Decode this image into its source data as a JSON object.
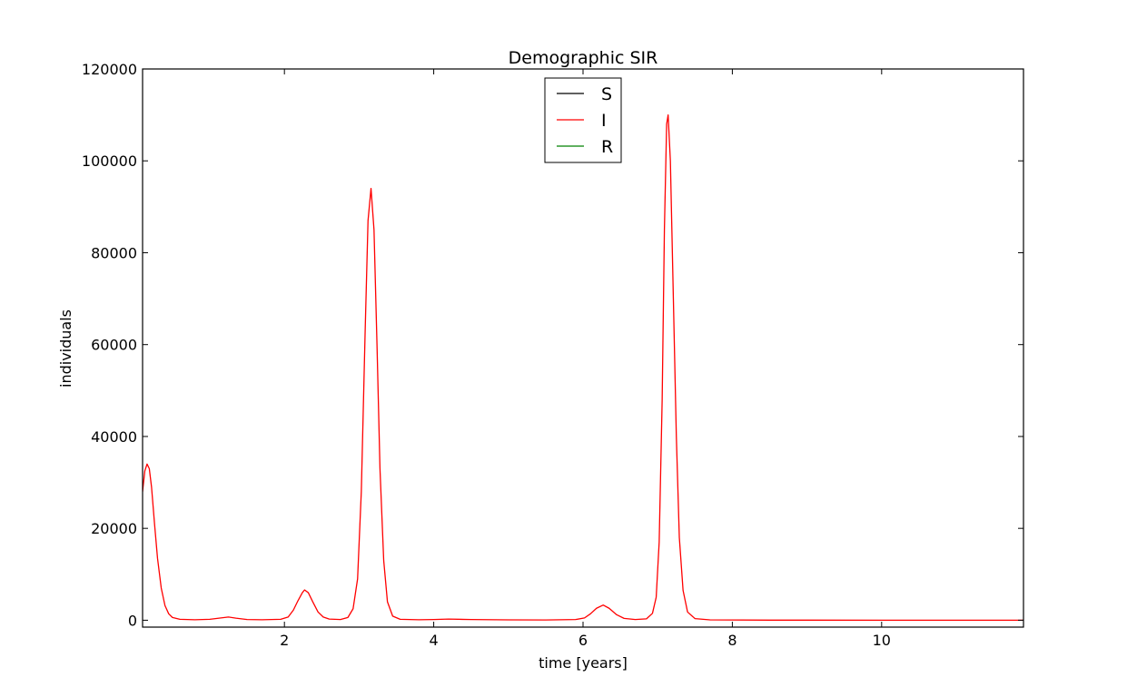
{
  "chart_data": {
    "type": "line",
    "title": "Demographic SIR",
    "xlabel": "time [years]",
    "ylabel": "individuals",
    "xlim": [
      0.1,
      11.9
    ],
    "ylim": [
      -1500,
      120000
    ],
    "xticks": [
      2,
      4,
      6,
      8,
      10
    ],
    "yticks": [
      0,
      20000,
      40000,
      60000,
      80000,
      100000,
      120000
    ],
    "legend_position": "upper center",
    "grid": false,
    "series": [
      {
        "name": "S",
        "color": "#000000",
        "points": []
      },
      {
        "name": "I",
        "color": "#ff0000",
        "points": [
          [
            0.1,
            28000
          ],
          [
            0.13,
            32500
          ],
          [
            0.16,
            34000
          ],
          [
            0.19,
            33000
          ],
          [
            0.22,
            29000
          ],
          [
            0.26,
            21000
          ],
          [
            0.3,
            13500
          ],
          [
            0.35,
            7000
          ],
          [
            0.4,
            3200
          ],
          [
            0.45,
            1400
          ],
          [
            0.5,
            600
          ],
          [
            0.6,
            200
          ],
          [
            0.8,
            100
          ],
          [
            1.0,
            200
          ],
          [
            1.15,
            500
          ],
          [
            1.25,
            700
          ],
          [
            1.35,
            450
          ],
          [
            1.5,
            150
          ],
          [
            1.7,
            100
          ],
          [
            1.95,
            200
          ],
          [
            2.05,
            700
          ],
          [
            2.12,
            2200
          ],
          [
            2.18,
            4200
          ],
          [
            2.24,
            6000
          ],
          [
            2.27,
            6600
          ],
          [
            2.32,
            6000
          ],
          [
            2.38,
            4000
          ],
          [
            2.45,
            1800
          ],
          [
            2.52,
            700
          ],
          [
            2.6,
            250
          ],
          [
            2.75,
            150
          ],
          [
            2.85,
            600
          ],
          [
            2.92,
            2500
          ],
          [
            2.98,
            9000
          ],
          [
            3.03,
            28000
          ],
          [
            3.08,
            62000
          ],
          [
            3.12,
            87000
          ],
          [
            3.16,
            94000
          ],
          [
            3.2,
            85000
          ],
          [
            3.24,
            60000
          ],
          [
            3.28,
            33000
          ],
          [
            3.33,
            13000
          ],
          [
            3.38,
            4000
          ],
          [
            3.45,
            900
          ],
          [
            3.55,
            200
          ],
          [
            3.8,
            100
          ],
          [
            4.0,
            150
          ],
          [
            4.2,
            250
          ],
          [
            4.5,
            150
          ],
          [
            5.0,
            80
          ],
          [
            5.5,
            60
          ],
          [
            5.9,
            150
          ],
          [
            6.02,
            500
          ],
          [
            6.1,
            1400
          ],
          [
            6.18,
            2600
          ],
          [
            6.27,
            3300
          ],
          [
            6.35,
            2600
          ],
          [
            6.45,
            1200
          ],
          [
            6.55,
            400
          ],
          [
            6.7,
            150
          ],
          [
            6.85,
            300
          ],
          [
            6.93,
            1500
          ],
          [
            6.98,
            5000
          ],
          [
            7.02,
            17000
          ],
          [
            7.06,
            48000
          ],
          [
            7.09,
            85000
          ],
          [
            7.12,
            108000
          ],
          [
            7.14,
            110000
          ],
          [
            7.17,
            100000
          ],
          [
            7.21,
            70000
          ],
          [
            7.25,
            40000
          ],
          [
            7.29,
            18000
          ],
          [
            7.34,
            6500
          ],
          [
            7.4,
            1800
          ],
          [
            7.5,
            350
          ],
          [
            7.7,
            80
          ],
          [
            8.5,
            20
          ],
          [
            10.0,
            10
          ],
          [
            11.9,
            5
          ]
        ]
      },
      {
        "name": "R",
        "color": "#008000",
        "points": []
      }
    ]
  }
}
